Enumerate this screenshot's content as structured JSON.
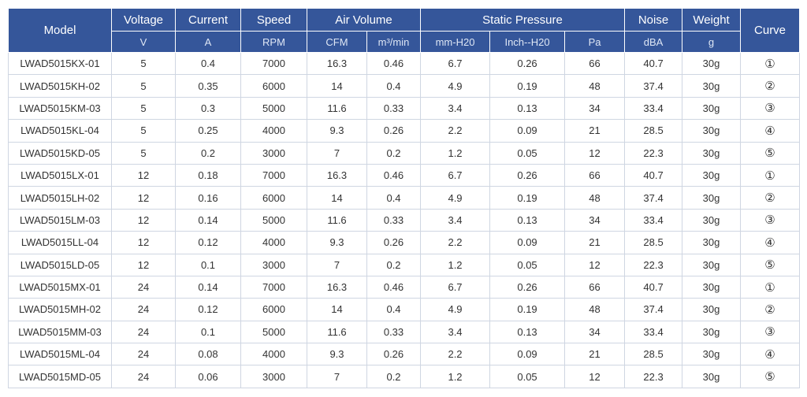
{
  "headers": {
    "model": "Model",
    "voltage": "Voltage",
    "current": "Current",
    "speed": "Speed",
    "air_volume": "Air Volume",
    "static_pressure": "Static Pressure",
    "noise": "Noise",
    "weight": "Weight",
    "curve": "Curve"
  },
  "units": [
    "V",
    "A",
    "RPM",
    "CFM",
    "m³/min",
    "mm-H20",
    "Inch--H20",
    "Pa",
    "dBA",
    "g"
  ],
  "rows": [
    [
      "LWAD5015KX-01",
      "5",
      "0.4",
      "7000",
      "16.3",
      "0.46",
      "6.7",
      "0.26",
      "66",
      "40.7",
      "30g",
      "①"
    ],
    [
      "LWAD5015KH-02",
      "5",
      "0.35",
      "6000",
      "14",
      "0.4",
      "4.9",
      "0.19",
      "48",
      "37.4",
      "30g",
      "②"
    ],
    [
      "LWAD5015KM-03",
      "5",
      "0.3",
      "5000",
      "11.6",
      "0.33",
      "3.4",
      "0.13",
      "34",
      "33.4",
      "30g",
      "③"
    ],
    [
      "LWAD5015KL-04",
      "5",
      "0.25",
      "4000",
      "9.3",
      "0.26",
      "2.2",
      "0.09",
      "21",
      "28.5",
      "30g",
      "④"
    ],
    [
      "LWAD5015KD-05",
      "5",
      "0.2",
      "3000",
      "7",
      "0.2",
      "1.2",
      "0.05",
      "12",
      "22.3",
      "30g",
      "⑤"
    ],
    [
      "LWAD5015LX-01",
      "12",
      "0.18",
      "7000",
      "16.3",
      "0.46",
      "6.7",
      "0.26",
      "66",
      "40.7",
      "30g",
      "①"
    ],
    [
      "LWAD5015LH-02",
      "12",
      "0.16",
      "6000",
      "14",
      "0.4",
      "4.9",
      "0.19",
      "48",
      "37.4",
      "30g",
      "②"
    ],
    [
      "LWAD5015LM-03",
      "12",
      "0.14",
      "5000",
      "11.6",
      "0.33",
      "3.4",
      "0.13",
      "34",
      "33.4",
      "30g",
      "③"
    ],
    [
      "LWAD5015LL-04",
      "12",
      "0.12",
      "4000",
      "9.3",
      "0.26",
      "2.2",
      "0.09",
      "21",
      "28.5",
      "30g",
      "④"
    ],
    [
      "LWAD5015LD-05",
      "12",
      "0.1",
      "3000",
      "7",
      "0.2",
      "1.2",
      "0.05",
      "12",
      "22.3",
      "30g",
      "⑤"
    ],
    [
      "LWAD5015MX-01",
      "24",
      "0.14",
      "7000",
      "16.3",
      "0.46",
      "6.7",
      "0.26",
      "66",
      "40.7",
      "30g",
      "①"
    ],
    [
      "LWAD5015MH-02",
      "24",
      "0.12",
      "6000",
      "14",
      "0.4",
      "4.9",
      "0.19",
      "48",
      "37.4",
      "30g",
      "②"
    ],
    [
      "LWAD5015MM-03",
      "24",
      "0.1",
      "5000",
      "11.6",
      "0.33",
      "3.4",
      "0.13",
      "34",
      "33.4",
      "30g",
      "③"
    ],
    [
      "LWAD5015ML-04",
      "24",
      "0.08",
      "4000",
      "9.3",
      "0.26",
      "2.2",
      "0.09",
      "21",
      "28.5",
      "30g",
      "④"
    ],
    [
      "LWAD5015MD-05",
      "24",
      "0.06",
      "3000",
      "7",
      "0.2",
      "1.2",
      "0.05",
      "12",
      "22.3",
      "30g",
      "⑤"
    ]
  ],
  "colors": {
    "header_bg": "#35569a",
    "header_text": "#ffffff",
    "cell_border": "#cfd6e2",
    "cell_text": "#333333"
  }
}
